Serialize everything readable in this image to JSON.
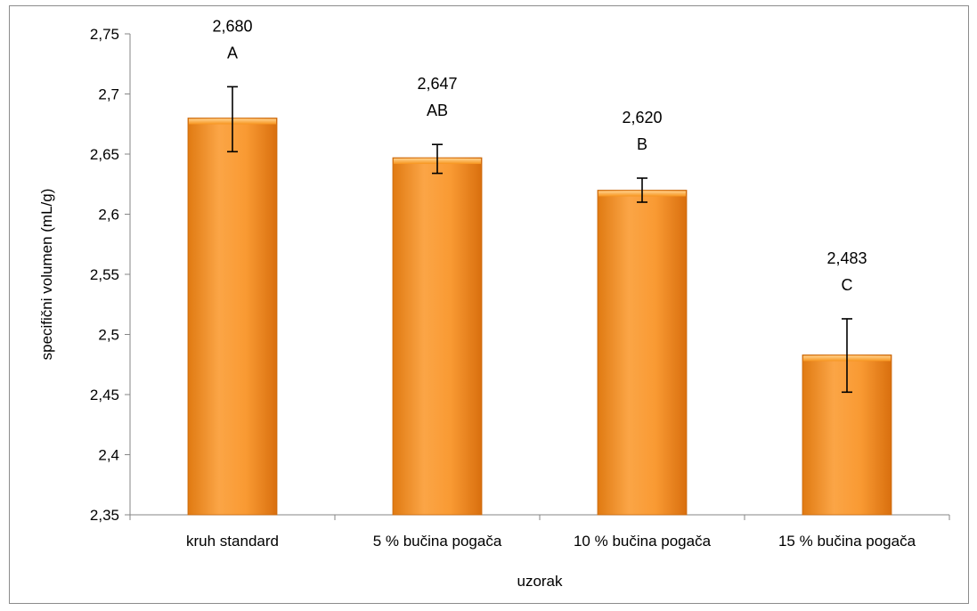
{
  "chart_data": {
    "type": "bar",
    "categories": [
      "kruh standard",
      "5 % bučina pogača",
      "10 % bučina pogača",
      "15 % bučina pogača"
    ],
    "values": [
      2.68,
      2.647,
      2.62,
      2.483
    ],
    "error_low": [
      2.652,
      2.634,
      2.61,
      2.452
    ],
    "error_high": [
      2.706,
      2.658,
      2.63,
      2.513
    ],
    "value_labels": [
      "2,680",
      "2,647",
      "2,620",
      "2,483"
    ],
    "group_labels": [
      "A",
      "AB",
      "B",
      "C"
    ],
    "xlabel": "uzorak",
    "ylabel": "specifični volumen (mL/g)",
    "ylim": [
      2.35,
      2.75
    ],
    "yticks": [
      2.35,
      2.4,
      2.45,
      2.5,
      2.55,
      2.6,
      2.65,
      2.7,
      2.75
    ],
    "ytick_labels": [
      "2,35",
      "2,4",
      "2,45",
      "2,5",
      "2,55",
      "2,6",
      "2,65",
      "2,7",
      "2,75"
    ],
    "grid": false,
    "legend": "none",
    "bar_color": "#F7941D"
  }
}
